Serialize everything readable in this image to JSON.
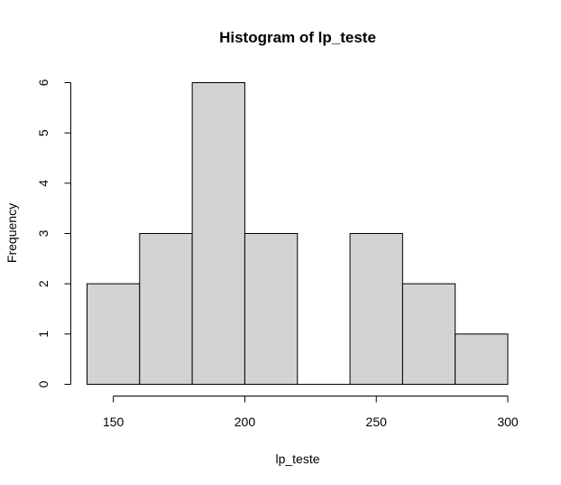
{
  "chart_data": {
    "type": "histogram",
    "title": "Histogram of lp_teste",
    "xlabel": "lp_teste",
    "ylabel": "Frequency",
    "bins": [
      {
        "start": 140,
        "end": 160,
        "count": 2
      },
      {
        "start": 160,
        "end": 180,
        "count": 3
      },
      {
        "start": 180,
        "end": 200,
        "count": 6
      },
      {
        "start": 200,
        "end": 220,
        "count": 3
      },
      {
        "start": 220,
        "end": 240,
        "count": 0
      },
      {
        "start": 240,
        "end": 260,
        "count": 3
      },
      {
        "start": 260,
        "end": 280,
        "count": 2
      },
      {
        "start": 280,
        "end": 300,
        "count": 1
      }
    ],
    "xlim": [
      140,
      300
    ],
    "ylim": [
      0,
      6
    ],
    "xticks": [
      150,
      200,
      250,
      300
    ],
    "yticks": [
      0,
      1,
      2,
      3,
      4,
      5,
      6
    ],
    "bar_fill": "#d3d3d3",
    "bar_stroke": "#000000",
    "grid": false,
    "legend": "none"
  }
}
